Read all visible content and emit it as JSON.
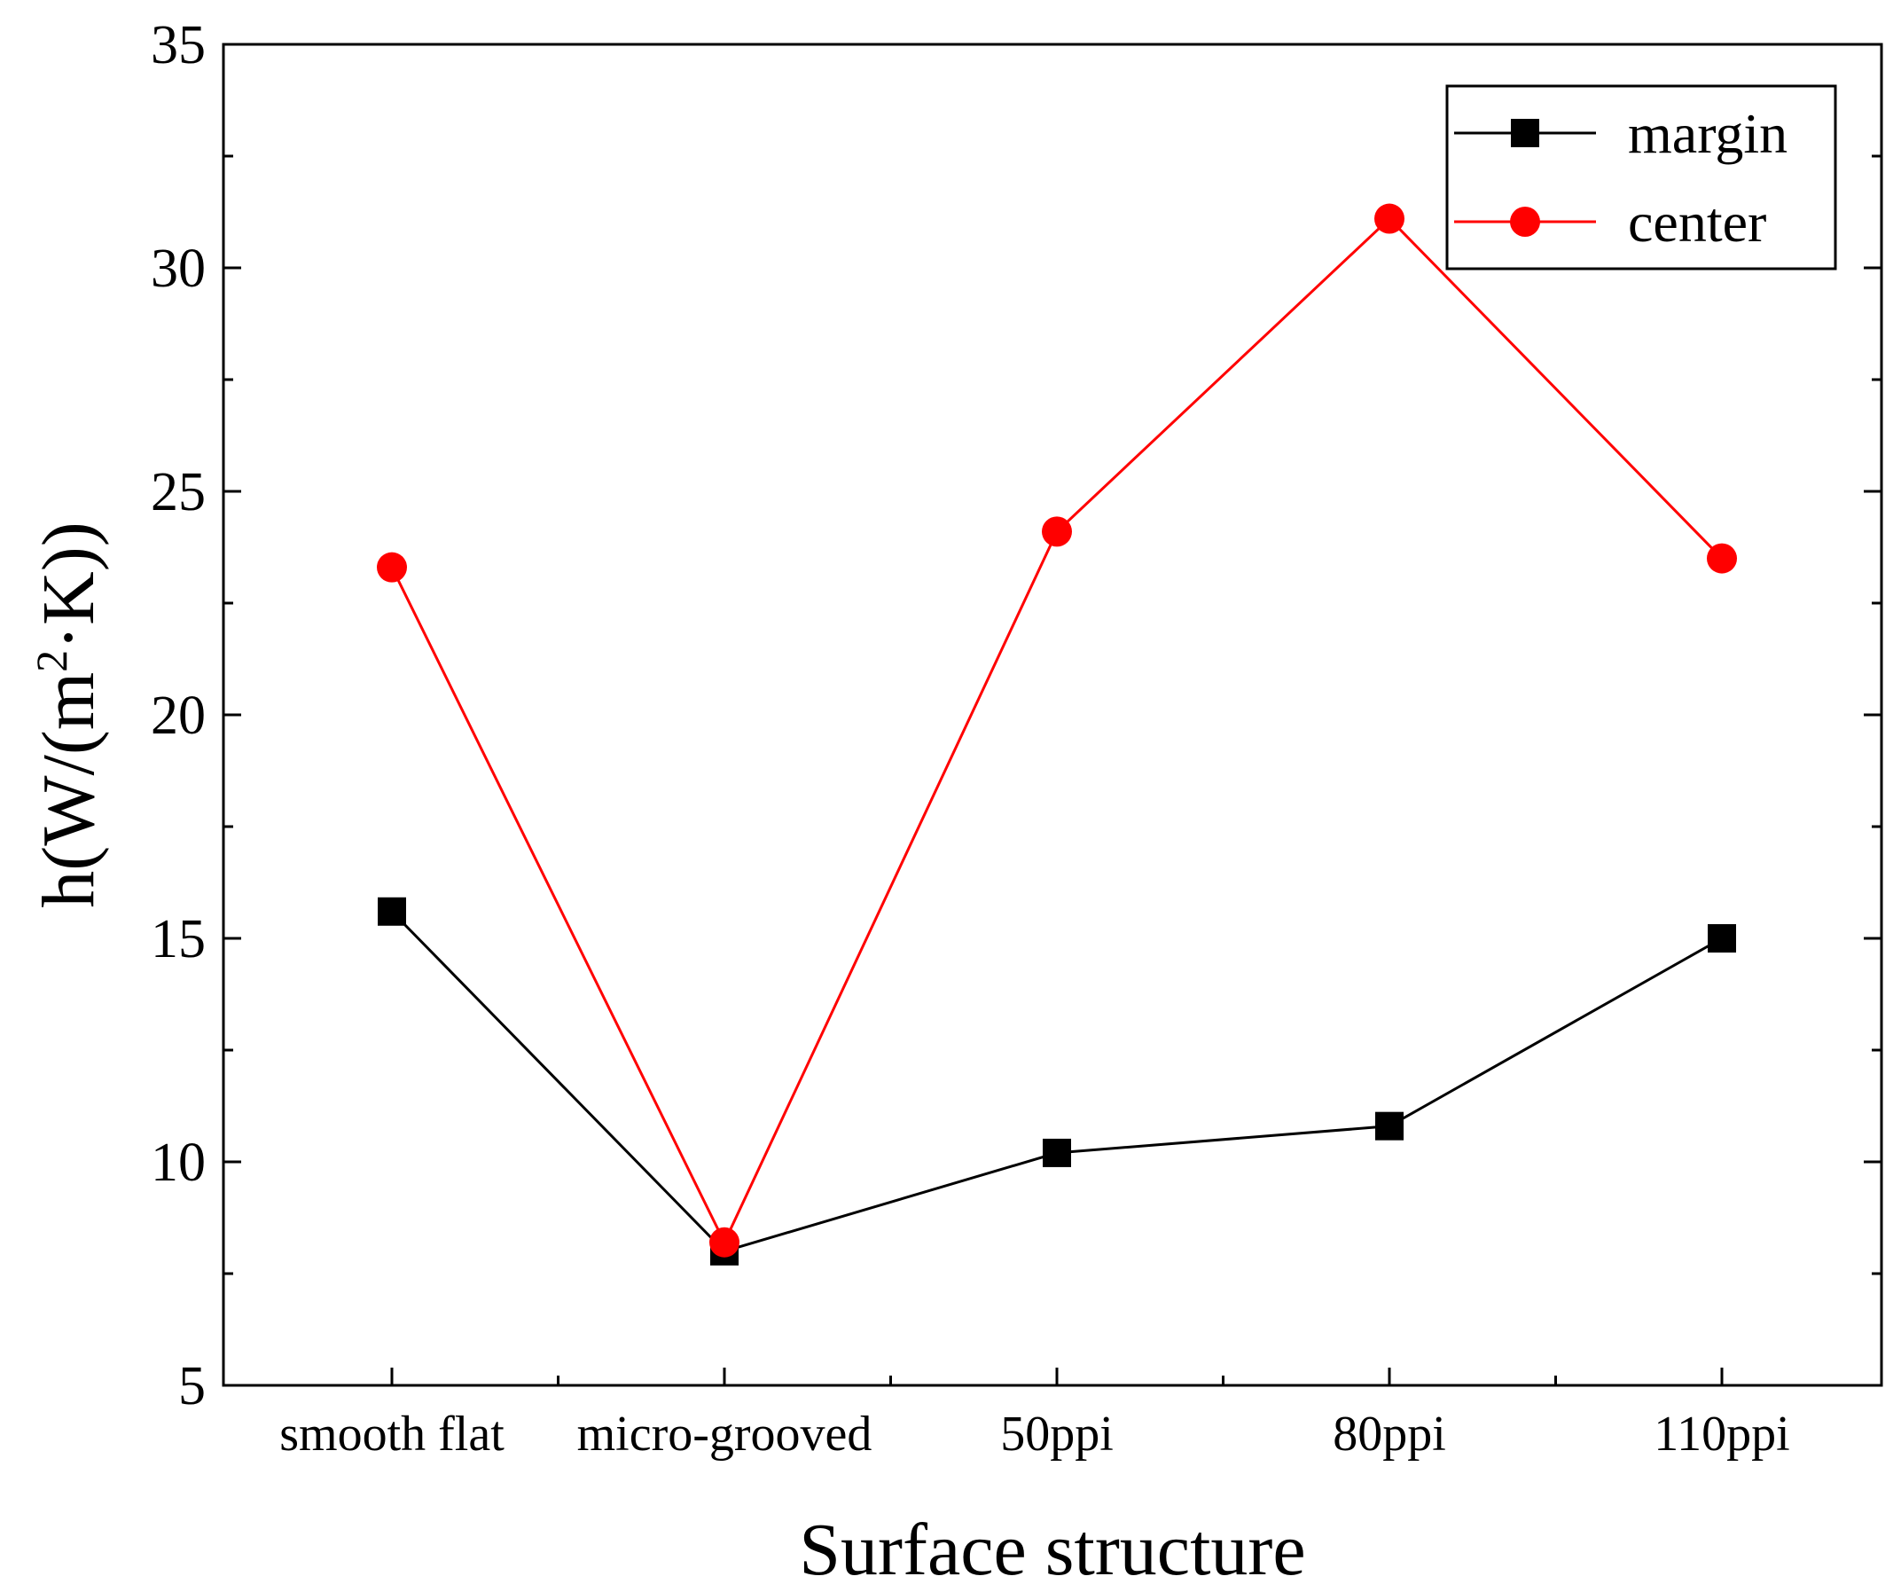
{
  "chart_data": {
    "type": "line",
    "title": "",
    "xlabel": "Surface structure",
    "ylabel": {
      "base": "h(W/(m",
      "superscript": "2",
      "tail": "·K))",
      "full": "h(W/(m²·K))"
    },
    "categories": [
      "smooth flat",
      "micro-grooved",
      "50ppi",
      "80ppi",
      "110ppi"
    ],
    "ylim": [
      5,
      35
    ],
    "yticks": [
      5,
      10,
      15,
      20,
      25,
      30,
      35
    ],
    "ytick_labels": [
      "5",
      "10",
      "15",
      "20",
      "25",
      "30",
      "35"
    ],
    "y_minor_step": 2.5,
    "grid": false,
    "legend_position": "top-right",
    "series": [
      {
        "name": "margin",
        "color": "#000000",
        "marker": "square",
        "values": [
          15.6,
          8.0,
          10.2,
          10.8,
          15.0
        ]
      },
      {
        "name": "center",
        "color": "#ff0000",
        "marker": "circle",
        "values": [
          23.3,
          8.2,
          24.1,
          31.1,
          23.5
        ]
      }
    ]
  }
}
